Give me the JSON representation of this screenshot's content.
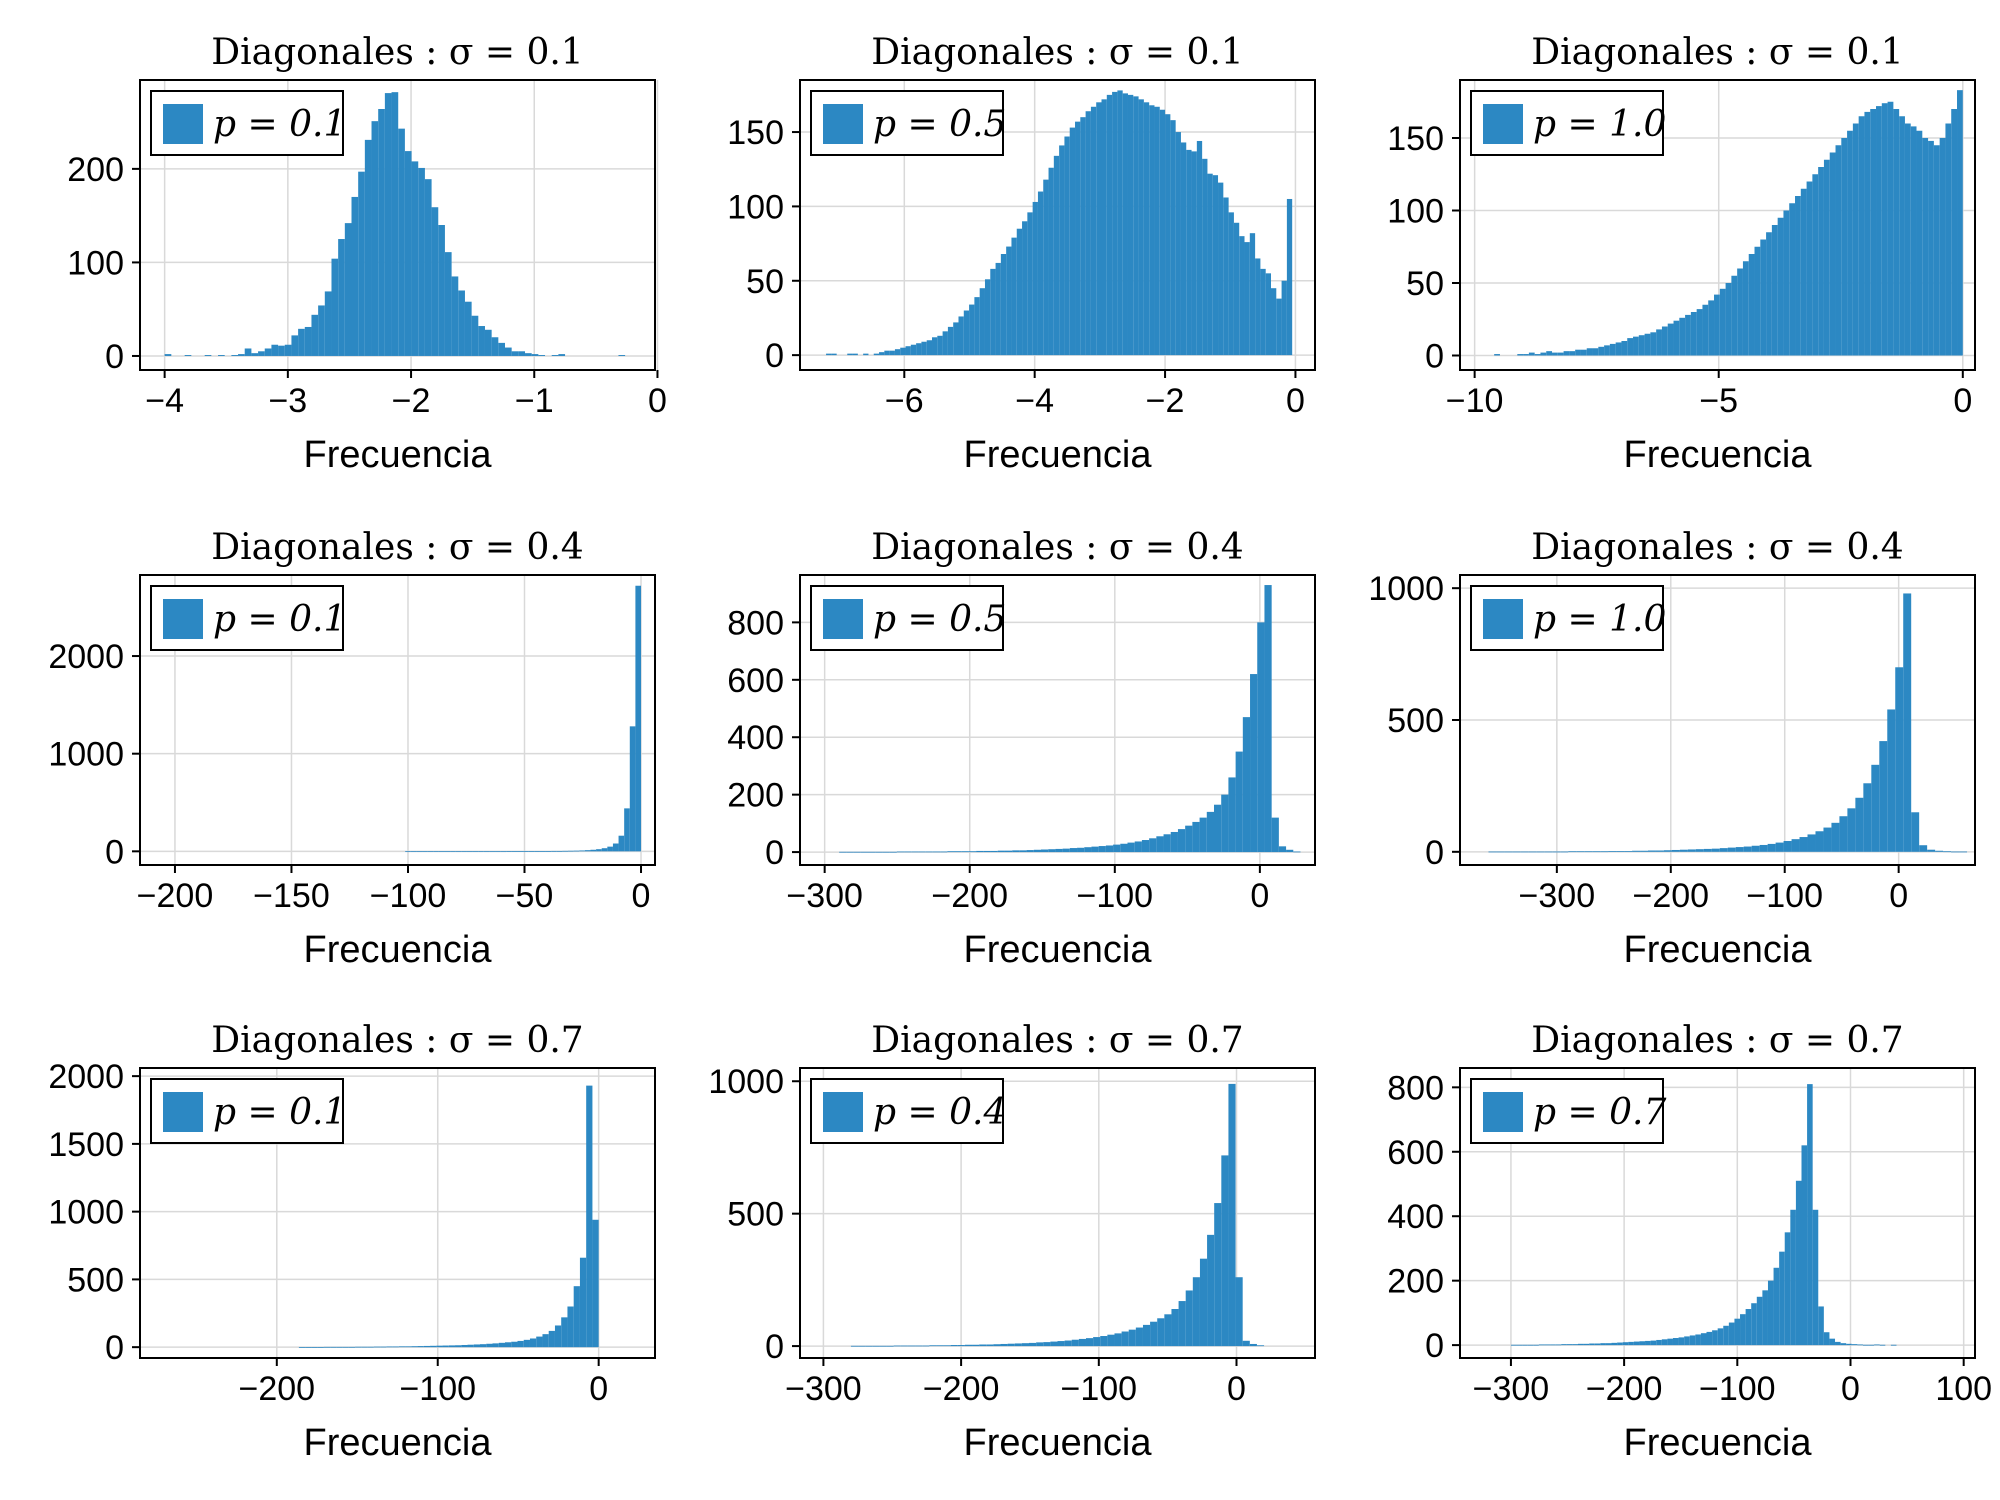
{
  "chart_data": [
    {
      "type": "bar",
      "title": "Diagonales : σ = 0.1",
      "xlabel": "Frecuencia",
      "legend": "p = 0.1",
      "legend_position": "top-left",
      "xlim": [
        -4.2,
        -0.02
      ],
      "ylim": [
        -15,
        295
      ],
      "xticks": [
        -4,
        -3,
        -2,
        -1,
        0
      ],
      "xtick_labels": [
        "−4",
        "−3",
        "−2",
        "−1",
        "0"
      ],
      "yticks": [
        0,
        100,
        200
      ],
      "ytick_labels": [
        "0",
        "100",
        "200"
      ],
      "bins_start": -4.0,
      "bins_end": -0.1,
      "values": [
        2,
        0,
        0,
        1,
        0,
        0,
        1,
        0,
        1,
        0,
        1,
        2,
        8,
        3,
        5,
        8,
        12,
        11,
        12,
        22,
        29,
        31,
        44,
        54,
        69,
        104,
        125,
        142,
        170,
        197,
        231,
        251,
        264,
        281,
        282,
        243,
        219,
        208,
        201,
        189,
        159,
        140,
        111,
        85,
        70,
        58,
        43,
        32,
        28,
        20,
        14,
        9,
        5,
        5,
        3,
        2,
        1,
        0,
        1,
        2,
        0,
        0,
        0,
        0,
        0,
        0,
        0,
        0,
        1,
        0,
        0,
        0
      ],
      "grid": true
    },
    {
      "type": "bar",
      "title": "Diagonales : σ = 0.1",
      "xlabel": "Frecuencia",
      "legend": "p = 0.5",
      "legend_position": "top-left",
      "xlim": [
        -7.6,
        0.3
      ],
      "ylim": [
        -10,
        185
      ],
      "xticks": [
        -6,
        -4,
        -2,
        0
      ],
      "xtick_labels": [
        "−6",
        "−4",
        "−2",
        "0"
      ],
      "yticks": [
        0,
        50,
        100,
        150
      ],
      "ytick_labels": [
        "0",
        "50",
        "100",
        "150"
      ],
      "bins_start": -7.2,
      "bins_end": -0.05,
      "values": [
        1,
        1,
        0,
        0,
        1,
        1,
        0,
        1,
        0,
        1,
        2,
        3,
        3,
        4,
        5,
        6,
        7,
        8,
        9,
        10,
        12,
        13,
        16,
        19,
        22,
        26,
        30,
        34,
        39,
        45,
        51,
        58,
        62,
        68,
        73,
        79,
        85,
        90,
        96,
        103,
        110,
        118,
        126,
        134,
        141,
        147,
        153,
        157,
        160,
        164,
        167,
        170,
        172,
        175,
        177,
        178,
        176,
        175,
        174,
        172,
        170,
        168,
        167,
        165,
        162,
        158,
        150,
        143,
        138,
        137,
        144,
        132,
        122,
        121,
        116,
        106,
        96,
        89,
        80,
        76,
        82,
        65,
        58,
        55,
        45,
        38,
        50,
        105
      ],
      "grid": true
    },
    {
      "type": "bar",
      "title": "Diagonales : σ = 0.1",
      "xlabel": "Frecuencia",
      "legend": "p = 1.0",
      "legend_position": "top-left",
      "xlim": [
        -10.3,
        0.25
      ],
      "ylim": [
        -10,
        190
      ],
      "xticks": [
        -10,
        -5,
        0
      ],
      "xtick_labels": [
        "−10",
        "−5",
        "0"
      ],
      "yticks": [
        0,
        50,
        100,
        150
      ],
      "ytick_labels": [
        "0",
        "50",
        "100",
        "150"
      ],
      "bins_start": -9.6,
      "bins_end": 0.0,
      "values": [
        1,
        0,
        0,
        0,
        1,
        1,
        2,
        1,
        2,
        3,
        2,
        2,
        3,
        3,
        4,
        4,
        5,
        5,
        6,
        7,
        8,
        9,
        10,
        12,
        13,
        14,
        15,
        16,
        18,
        20,
        22,
        24,
        26,
        28,
        30,
        32,
        35,
        38,
        42,
        46,
        50,
        55,
        60,
        65,
        70,
        75,
        80,
        85,
        90,
        95,
        100,
        105,
        110,
        115,
        120,
        125,
        130,
        135,
        140,
        145,
        150,
        155,
        160,
        165,
        168,
        170,
        172,
        174,
        175,
        170,
        165,
        160,
        158,
        155,
        150,
        148,
        145,
        150,
        160,
        170,
        183
      ],
      "grid": true
    },
    {
      "type": "bar",
      "title": "Diagonales : σ = 0.4",
      "xlabel": "Frecuencia",
      "legend": "p = 0.1",
      "legend_position": "top-left",
      "xlim": [
        -215,
        6
      ],
      "ylim": [
        -140,
        2830
      ],
      "xticks": [
        -200,
        -150,
        -100,
        -50,
        0
      ],
      "xtick_labels": [
        "−200",
        "−150",
        "−100",
        "−50",
        "0"
      ],
      "yticks": [
        0,
        1000,
        2000
      ],
      "ytick_labels": [
        "0",
        "1000",
        "2000"
      ],
      "bins_start": -200,
      "bins_end": 0,
      "values": [
        0,
        0,
        0,
        0,
        0,
        0,
        0,
        0,
        0,
        0,
        0,
        0,
        0,
        0,
        0,
        0,
        0,
        0,
        0,
        0,
        0,
        0,
        0,
        0,
        0,
        0,
        0,
        0,
        0,
        0,
        0,
        0,
        0,
        0,
        0,
        0,
        0,
        0,
        0,
        0,
        0,
        1,
        1,
        1,
        1,
        1,
        1,
        1,
        1,
        1,
        1,
        1,
        1,
        1,
        1,
        1,
        1,
        1,
        1,
        2,
        2,
        2,
        2,
        2,
        3,
        3,
        3,
        4,
        4,
        5,
        6,
        7,
        9,
        12,
        16,
        22,
        32,
        48,
        80,
        160,
        440,
        1280,
        2720
      ],
      "grid": true
    },
    {
      "type": "bar",
      "title": "Diagonales : σ = 0.4",
      "xlabel": "Frecuencia",
      "legend": "p = 0.5",
      "legend_position": "top-left",
      "xlim": [
        -317,
        38
      ],
      "ylim": [
        -45,
        965
      ],
      "xticks": [
        -300,
        -200,
        -100,
        0
      ],
      "xtick_labels": [
        "−300",
        "−200",
        "−100",
        "0"
      ],
      "yticks": [
        0,
        200,
        400,
        600,
        800
      ],
      "ytick_labels": [
        "0",
        "200",
        "400",
        "600",
        "800"
      ],
      "bins_start": -290,
      "bins_end": 28,
      "values": [
        1,
        1,
        1,
        1,
        1,
        1,
        1,
        1,
        2,
        2,
        2,
        2,
        2,
        2,
        2,
        3,
        3,
        3,
        3,
        4,
        4,
        4,
        5,
        5,
        6,
        6,
        7,
        8,
        9,
        10,
        11,
        12,
        14,
        15,
        17,
        19,
        21,
        23,
        26,
        29,
        33,
        37,
        42,
        48,
        55,
        62,
        70,
        80,
        92,
        105,
        120,
        140,
        165,
        200,
        260,
        350,
        470,
        620,
        800,
        930,
        120,
        20,
        8,
        2
      ],
      "grid": true
    },
    {
      "type": "bar",
      "title": "Diagonales : σ = 0.4",
      "xlabel": "Frecuencia",
      "legend": "p = 1.0",
      "legend_position": "top-left",
      "xlim": [
        -385,
        67
      ],
      "ylim": [
        -50,
        1050
      ],
      "xticks": [
        -300,
        -200,
        -100,
        0
      ],
      "xtick_labels": [
        "−300",
        "−200",
        "−100",
        "0"
      ],
      "yticks": [
        0,
        500,
        1000
      ],
      "ytick_labels": [
        "0",
        "500",
        "1000"
      ],
      "bins_start": -360,
      "bins_end": 60,
      "values": [
        1,
        1,
        1,
        1,
        1,
        1,
        1,
        1,
        1,
        1,
        2,
        2,
        2,
        2,
        2,
        3,
        3,
        3,
        4,
        4,
        5,
        5,
        6,
        7,
        8,
        9,
        10,
        11,
        12,
        14,
        16,
        18,
        20,
        23,
        26,
        30,
        35,
        41,
        48,
        56,
        66,
        78,
        92,
        110,
        135,
        165,
        205,
        260,
        330,
        420,
        540,
        700,
        980,
        150,
        25,
        8,
        4,
        2,
        1,
        1
      ],
      "grid": true
    },
    {
      "type": "bar",
      "title": "Diagonales : σ = 0.7",
      "xlabel": "Frecuencia",
      "legend": "p = 0.1",
      "legend_position": "top-left",
      "xlim": [
        -285,
        35
      ],
      "ylim": [
        -80,
        2060
      ],
      "xticks": [
        -200,
        -100,
        0
      ],
      "xtick_labels": [
        "−200",
        "−100",
        "0"
      ],
      "yticks": [
        0,
        500,
        1000,
        1500,
        2000
      ],
      "ytick_labels": [
        "0",
        "500",
        "1000",
        "1500",
        "2000"
      ],
      "bins_start": -260,
      "bins_end": 0,
      "values": [
        0,
        0,
        0,
        0,
        0,
        0,
        0,
        0,
        0,
        0,
        0,
        0,
        0,
        0,
        0,
        0,
        0,
        0,
        0,
        1,
        1,
        1,
        1,
        2,
        2,
        2,
        2,
        2,
        3,
        3,
        3,
        4,
        4,
        5,
        5,
        6,
        6,
        7,
        8,
        9,
        10,
        11,
        12,
        13,
        14,
        16,
        18,
        20,
        22,
        25,
        28,
        32,
        36,
        40,
        46,
        54,
        64,
        78,
        96,
        120,
        160,
        220,
        300,
        450,
        660,
        1930,
        940
      ],
      "grid": true
    },
    {
      "type": "bar",
      "title": "Diagonales : σ = 0.7",
      "xlabel": "Frecuencia",
      "legend": "p = 0.4",
      "legend_position": "top-left",
      "xlim": [
        -317,
        57
      ],
      "ylim": [
        -45,
        1050
      ],
      "xticks": [
        -300,
        -200,
        -100,
        0
      ],
      "xtick_labels": [
        "−300",
        "−200",
        "−100",
        "0"
      ],
      "yticks": [
        0,
        500,
        1000
      ],
      "ytick_labels": [
        "0",
        "500",
        "1000"
      ],
      "bins_start": -280,
      "bins_end": 20,
      "values": [
        1,
        1,
        1,
        1,
        1,
        1,
        2,
        2,
        2,
        2,
        2,
        3,
        3,
        3,
        4,
        4,
        5,
        5,
        6,
        6,
        7,
        8,
        9,
        10,
        11,
        12,
        14,
        15,
        17,
        19,
        21,
        24,
        27,
        30,
        34,
        38,
        43,
        48,
        55,
        62,
        70,
        80,
        92,
        105,
        120,
        140,
        170,
        210,
        260,
        330,
        420,
        540,
        720,
        990,
        260,
        20,
        8,
        3
      ],
      "grid": true
    },
    {
      "type": "bar",
      "title": "Diagonales : σ = 0.7",
      "xlabel": "Frecuencia",
      "legend": "p = 0.7",
      "legend_position": "top-left",
      "xlim": [
        -345,
        110
      ],
      "ylim": [
        -40,
        860
      ],
      "xticks": [
        -300,
        -200,
        -100,
        0,
        100
      ],
      "xtick_labels": [
        "−300",
        "−200",
        "−100",
        "0",
        "100"
      ],
      "yticks": [
        0,
        200,
        400,
        600,
        800
      ],
      "ytick_labels": [
        "0",
        "200",
        "400",
        "600",
        "800"
      ],
      "bins_start": -300,
      "bins_end": 90,
      "values": [
        1,
        1,
        1,
        1,
        1,
        2,
        2,
        2,
        2,
        3,
        3,
        3,
        4,
        4,
        5,
        5,
        6,
        6,
        7,
        8,
        9,
        10,
        11,
        12,
        13,
        14,
        16,
        18,
        20,
        22,
        24,
        27,
        30,
        33,
        37,
        41,
        46,
        52,
        60,
        70,
        82,
        96,
        112,
        130,
        150,
        170,
        200,
        240,
        290,
        350,
        420,
        510,
        620,
        810,
        420,
        120,
        40,
        20,
        10,
        6,
        4,
        3,
        2,
        1,
        1,
        2,
        1,
        0,
        1,
        0,
        0,
        0,
        0,
        0,
        0,
        0,
        0,
        0,
        0
      ],
      "grid": true
    }
  ]
}
